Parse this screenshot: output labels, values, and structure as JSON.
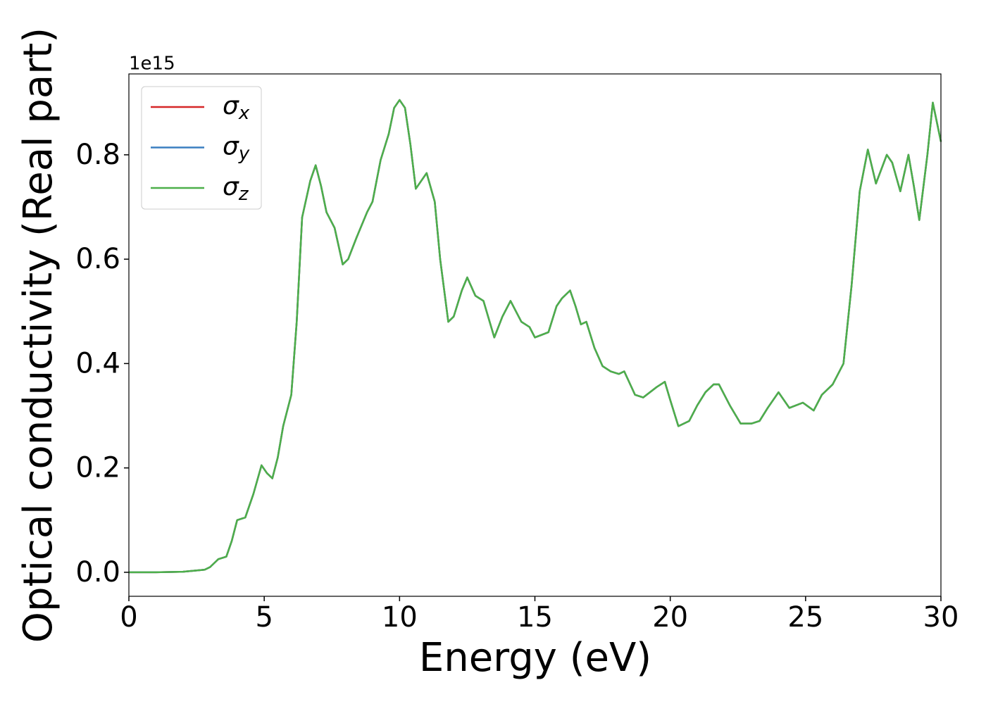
{
  "chart_data": {
    "type": "line",
    "xlabel": "Energy (eV)",
    "ylabel": "Optical conductivity (Real part)",
    "y_offset_label": "1e15",
    "x": [
      0,
      1,
      2,
      2.8,
      3.0,
      3.3,
      3.6,
      3.8,
      4.0,
      4.3,
      4.6,
      4.9,
      5.1,
      5.3,
      5.5,
      5.7,
      6.0,
      6.2,
      6.4,
      6.7,
      6.9,
      7.1,
      7.3,
      7.6,
      7.9,
      8.1,
      8.4,
      8.8,
      9.0,
      9.3,
      9.6,
      9.8,
      10.0,
      10.2,
      10.4,
      10.6,
      10.8,
      11.0,
      11.3,
      11.5,
      11.8,
      12.0,
      12.3,
      12.5,
      12.8,
      13.1,
      13.5,
      13.8,
      14.1,
      14.3,
      14.5,
      14.8,
      15.0,
      15.5,
      15.8,
      16.0,
      16.3,
      16.5,
      16.7,
      16.9,
      17.2,
      17.5,
      17.8,
      18.1,
      18.3,
      18.7,
      19.0,
      19.5,
      19.8,
      20.0,
      20.3,
      20.7,
      21.0,
      21.3,
      21.6,
      21.8,
      22.2,
      22.6,
      23.0,
      23.3,
      23.6,
      24.0,
      24.4,
      24.9,
      25.3,
      25.6,
      26.0,
      26.4,
      26.7,
      27.0,
      27.3,
      27.6,
      28.0,
      28.2,
      28.5,
      28.8,
      29.0,
      29.2,
      29.5,
      29.7,
      30.0
    ],
    "series": [
      {
        "name": "σx",
        "color": "#d62728",
        "values": [
          0,
          0,
          0.001,
          0.005,
          0.01,
          0.025,
          0.03,
          0.06,
          0.1,
          0.105,
          0.15,
          0.205,
          0.19,
          0.18,
          0.22,
          0.28,
          0.34,
          0.48,
          0.68,
          0.75,
          0.78,
          0.74,
          0.69,
          0.66,
          0.59,
          0.6,
          0.64,
          0.69,
          0.71,
          0.79,
          0.84,
          0.89,
          0.905,
          0.89,
          0.82,
          0.735,
          0.75,
          0.765,
          0.71,
          0.6,
          0.48,
          0.49,
          0.54,
          0.565,
          0.53,
          0.52,
          0.45,
          0.49,
          0.52,
          0.5,
          0.48,
          0.47,
          0.45,
          0.46,
          0.51,
          0.525,
          0.54,
          0.51,
          0.475,
          0.48,
          0.43,
          0.395,
          0.385,
          0.38,
          0.385,
          0.34,
          0.335,
          0.355,
          0.365,
          0.33,
          0.28,
          0.29,
          0.32,
          0.345,
          0.36,
          0.36,
          0.32,
          0.285,
          0.285,
          0.29,
          0.315,
          0.345,
          0.315,
          0.325,
          0.31,
          0.34,
          0.36,
          0.4,
          0.55,
          0.73,
          0.81,
          0.745,
          0.8,
          0.785,
          0.73,
          0.8,
          0.74,
          0.675,
          0.8,
          0.9,
          0.825
        ]
      },
      {
        "name": "σy",
        "color": "#3a7fc1",
        "values": [
          0,
          0,
          0.001,
          0.005,
          0.01,
          0.025,
          0.03,
          0.06,
          0.1,
          0.105,
          0.15,
          0.205,
          0.19,
          0.18,
          0.22,
          0.28,
          0.34,
          0.48,
          0.68,
          0.75,
          0.78,
          0.74,
          0.69,
          0.66,
          0.59,
          0.6,
          0.64,
          0.69,
          0.71,
          0.79,
          0.84,
          0.89,
          0.905,
          0.89,
          0.82,
          0.735,
          0.75,
          0.765,
          0.71,
          0.6,
          0.48,
          0.49,
          0.54,
          0.565,
          0.53,
          0.52,
          0.45,
          0.49,
          0.52,
          0.5,
          0.48,
          0.47,
          0.45,
          0.46,
          0.51,
          0.525,
          0.54,
          0.51,
          0.475,
          0.48,
          0.43,
          0.395,
          0.385,
          0.38,
          0.385,
          0.34,
          0.335,
          0.355,
          0.365,
          0.33,
          0.28,
          0.29,
          0.32,
          0.345,
          0.36,
          0.36,
          0.32,
          0.285,
          0.285,
          0.29,
          0.315,
          0.345,
          0.315,
          0.325,
          0.31,
          0.34,
          0.36,
          0.4,
          0.55,
          0.73,
          0.81,
          0.745,
          0.8,
          0.785,
          0.73,
          0.8,
          0.74,
          0.675,
          0.8,
          0.9,
          0.825
        ]
      },
      {
        "name": "σz",
        "color": "#4daf4a",
        "values": [
          0,
          0,
          0.001,
          0.005,
          0.01,
          0.025,
          0.03,
          0.06,
          0.1,
          0.105,
          0.15,
          0.205,
          0.19,
          0.18,
          0.22,
          0.28,
          0.34,
          0.48,
          0.68,
          0.75,
          0.78,
          0.74,
          0.69,
          0.66,
          0.59,
          0.6,
          0.64,
          0.69,
          0.71,
          0.79,
          0.84,
          0.89,
          0.905,
          0.89,
          0.82,
          0.735,
          0.75,
          0.765,
          0.71,
          0.6,
          0.48,
          0.49,
          0.54,
          0.565,
          0.53,
          0.52,
          0.45,
          0.49,
          0.52,
          0.5,
          0.48,
          0.47,
          0.45,
          0.46,
          0.51,
          0.525,
          0.54,
          0.51,
          0.475,
          0.48,
          0.43,
          0.395,
          0.385,
          0.38,
          0.385,
          0.34,
          0.335,
          0.355,
          0.365,
          0.33,
          0.28,
          0.29,
          0.32,
          0.345,
          0.36,
          0.36,
          0.32,
          0.285,
          0.285,
          0.29,
          0.315,
          0.345,
          0.315,
          0.325,
          0.31,
          0.34,
          0.36,
          0.4,
          0.55,
          0.73,
          0.81,
          0.745,
          0.8,
          0.785,
          0.73,
          0.8,
          0.74,
          0.675,
          0.8,
          0.9,
          0.825
        ]
      }
    ],
    "xlim": [
      0,
      30
    ],
    "xticks": [
      0,
      5,
      10,
      15,
      20,
      25,
      30
    ],
    "ylim": [
      -0.046,
      0.955
    ],
    "yticks": [
      {
        "value": 0,
        "label": "0.0"
      },
      0.2,
      0.4,
      0.6,
      0.8
    ],
    "legend": "upper left",
    "grid": false
  }
}
